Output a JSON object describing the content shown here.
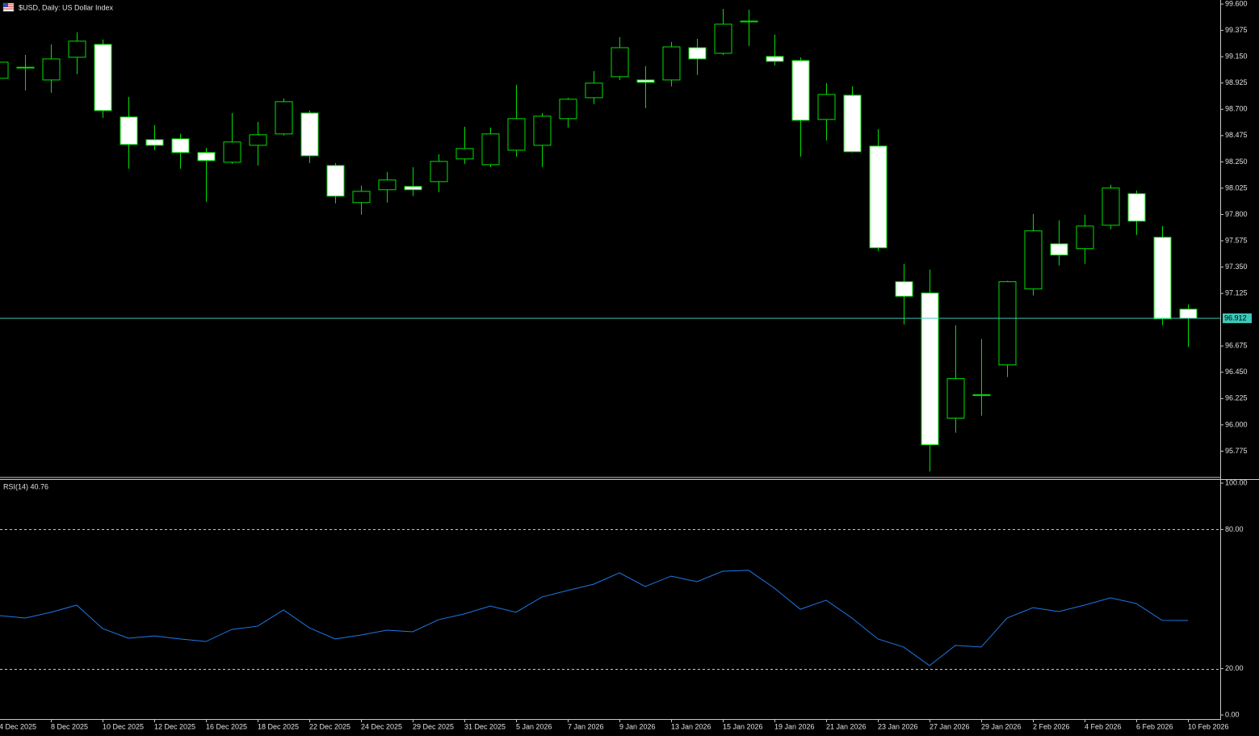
{
  "chart_data": [
    {
      "type": "candlestick",
      "title": "$USD, Daily:  US Dollar Index",
      "categories": [
        "4 Dec 2025",
        null,
        "8 Dec 2025",
        null,
        "10 Dec 2025",
        null,
        "12 Dec 2025",
        null,
        "16 Dec 2025",
        null,
        "18 Dec 2025",
        null,
        "22 Dec 2025",
        null,
        "24 Dec 2025",
        null,
        "29 Dec 2025",
        null,
        "31 Dec 2025",
        null,
        "5 Jan 2026",
        null,
        "7 Jan 2026",
        null,
        "9 Jan 2026",
        null,
        "13 Jan 2026",
        null,
        "15 Jan 2026",
        null,
        "19 Jan 2026",
        null,
        "21 Jan 2026",
        null,
        "23 Jan 2026",
        null,
        "27 Jan 2026",
        null,
        "29 Jan 2026",
        null,
        "2 Feb 2026",
        null,
        "4 Feb 2026",
        null,
        "6 Feb 2026",
        null,
        "10 Feb 2026"
      ],
      "open": [
        98.965,
        99.055,
        98.951,
        99.145,
        99.255,
        98.634,
        98.44,
        98.447,
        98.33,
        98.247,
        98.392,
        98.489,
        98.668,
        98.219,
        97.902,
        98.012,
        98.04,
        98.081,
        98.275,
        98.226,
        98.35,
        98.392,
        98.62,
        98.799,
        98.979,
        98.951,
        98.951,
        99.227,
        99.179,
        99.455,
        99.152,
        99.117,
        98.613,
        98.82,
        98.385,
        97.225,
        97.128,
        96.058,
        96.251,
        96.513,
        97.163,
        97.549,
        97.508,
        97.708,
        97.978,
        97.605,
        96.99
      ],
      "high": [
        99.152,
        99.165,
        99.255,
        99.359,
        99.297,
        98.806,
        98.565,
        98.489,
        98.371,
        98.668,
        98.592,
        98.793,
        98.689,
        98.24,
        98.047,
        98.164,
        98.205,
        98.316,
        98.551,
        98.544,
        98.91,
        98.668,
        98.799,
        99.027,
        99.317,
        99.069,
        99.276,
        99.303,
        99.559,
        99.552,
        99.338,
        99.145,
        98.924,
        98.896,
        98.53,
        97.377,
        97.328,
        96.852,
        96.734,
        97.232,
        97.805,
        97.75,
        97.798,
        98.054,
        98.005,
        97.701,
        97.031
      ],
      "low": [
        98.951,
        98.862,
        98.841,
        99.0,
        98.627,
        98.192,
        98.35,
        98.192,
        97.909,
        98.233,
        98.219,
        98.475,
        98.24,
        97.895,
        97.798,
        97.902,
        97.957,
        97.991,
        98.233,
        98.205,
        98.295,
        98.205,
        98.544,
        98.744,
        98.951,
        98.71,
        98.896,
        98.993,
        99.165,
        99.241,
        99.076,
        98.295,
        98.433,
        98.33,
        97.487,
        96.859,
        95.602,
        95.933,
        96.078,
        96.41,
        97.107,
        97.363,
        97.377,
        97.674,
        97.625,
        96.852,
        96.665
      ],
      "close": [
        99.103,
        99.06,
        99.131,
        99.283,
        98.689,
        98.399,
        98.392,
        98.33,
        98.261,
        98.42,
        98.482,
        98.765,
        98.302,
        97.957,
        97.998,
        98.095,
        98.012,
        98.254,
        98.364,
        98.489,
        98.62,
        98.641,
        98.786,
        98.924,
        99.227,
        98.931,
        99.234,
        99.131,
        99.428,
        99.452,
        99.11,
        98.606,
        98.827,
        98.337,
        97.515,
        97.1,
        95.83,
        96.396,
        96.258,
        97.225,
        97.66,
        97.453,
        97.701,
        98.026,
        97.743,
        96.907,
        96.912
      ],
      "ylim": [
        95.55,
        99.635
      ],
      "yticks": [
        {
          "value": 99.6,
          "label": "99.600"
        },
        {
          "value": 99.375,
          "label": "99.375"
        },
        {
          "value": 99.15,
          "label": "99.150"
        },
        {
          "value": 98.925,
          "label": "98.925"
        },
        {
          "value": 98.7,
          "label": "98.700"
        },
        {
          "value": 98.475,
          "label": "98.475"
        },
        {
          "value": 98.25,
          "label": "98.250"
        },
        {
          "value": 98.025,
          "label": "98.025"
        },
        {
          "value": 97.8,
          "label": "97.800"
        },
        {
          "value": 97.575,
          "label": "97.575"
        },
        {
          "value": 97.35,
          "label": "97.350"
        },
        {
          "value": 97.125,
          "label": "97.125"
        },
        {
          "value": 96.675,
          "label": "96.675"
        },
        {
          "value": 96.45,
          "label": "96.450"
        },
        {
          "value": 96.225,
          "label": "96.225"
        },
        {
          "value": 96.0,
          "label": "96.000"
        },
        {
          "value": 95.775,
          "label": "95.775"
        }
      ],
      "current_price": {
        "value": 96.912,
        "label": "96.912"
      },
      "current_price_color": "#3ec8b8",
      "up_color": "#000000",
      "down_color": "#ffffff",
      "wick_color": "#00e000"
    },
    {
      "type": "line",
      "title": "RSI(14) 40.76",
      "values": [
        42.9,
        41.8,
        44.3,
        47.4,
        37.3,
        33.1,
        34.1,
        32.8,
        31.7,
        36.9,
        38.3,
        45.3,
        37.6,
        32.8,
        34.5,
        36.6,
        35.9,
        41.1,
        43.6,
        47.0,
        44.3,
        50.9,
        53.7,
        56.4,
        61.3,
        55.4,
        59.9,
        57.5,
        62.0,
        62.4,
        54.7,
        45.6,
        49.5,
        41.8,
        32.8,
        29.3,
        21.3,
        30.0,
        29.3,
        41.8,
        46.3,
        44.6,
        47.4,
        50.5,
        48.1,
        40.8,
        40.76
      ],
      "color": "#1e78e6",
      "ylim": [
        -2.09,
        101.74
      ],
      "yticks": [
        {
          "value": 100,
          "label": "100.00"
        },
        {
          "value": 80,
          "label": "80.00"
        },
        {
          "value": 20,
          "label": "20.00"
        },
        {
          "value": 0,
          "label": "0.00"
        }
      ],
      "levels": [
        80,
        20
      ]
    }
  ]
}
